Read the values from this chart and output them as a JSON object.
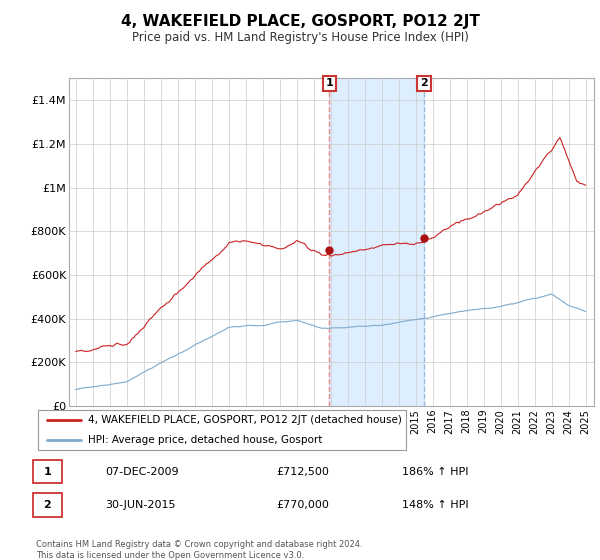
{
  "title": "4, WAKEFIELD PLACE, GOSPORT, PO12 2JT",
  "subtitle": "Price paid vs. HM Land Registry's House Price Index (HPI)",
  "legend_line1": "4, WAKEFIELD PLACE, GOSPORT, PO12 2JT (detached house)",
  "legend_line2": "HPI: Average price, detached house, Gosport",
  "table_row1": [
    "1",
    "07-DEC-2009",
    "£712,500",
    "186% ↑ HPI"
  ],
  "table_row2": [
    "2",
    "30-JUN-2015",
    "£770,000",
    "148% ↑ HPI"
  ],
  "footnote": "Contains HM Land Registry data © Crown copyright and database right 2024.\nThis data is licensed under the Open Government Licence v3.0.",
  "hpi_color": "#7eaacc",
  "price_color": "#cc2222",
  "marker_color": "#aa1111",
  "vline1_color": "#ee8888",
  "vline2_color": "#99bbdd",
  "shade_color": "#ddeeff",
  "sale1_date": 2009.92,
  "sale1_price": 712500,
  "sale2_date": 2015.5,
  "sale2_price": 770000,
  "ylim_min": 0,
  "ylim_max": 1500000,
  "xlim_min": 1994.6,
  "xlim_max": 2025.5,
  "yticks": [
    0,
    200000,
    400000,
    600000,
    800000,
    1000000,
    1200000,
    1400000
  ],
  "ytick_labels": [
    "£0",
    "£200K",
    "£400K",
    "£600K",
    "£800K",
    "£1M",
    "£1.2M",
    "£1.4M"
  ],
  "background_color": "#ffffff",
  "grid_color": "#cccccc"
}
